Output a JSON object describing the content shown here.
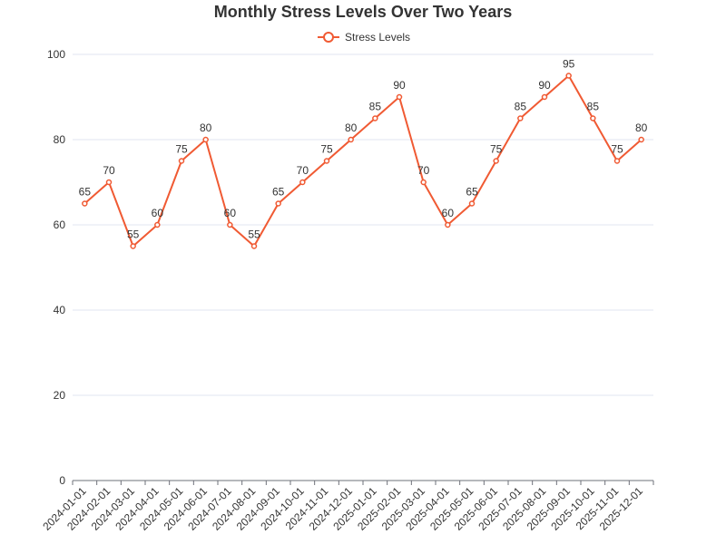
{
  "chart_data": {
    "type": "line",
    "title": "Monthly Stress Levels Over Two Years",
    "x": [
      "2024-01-01",
      "2024-02-01",
      "2024-03-01",
      "2024-04-01",
      "2024-05-01",
      "2024-06-01",
      "2024-07-01",
      "2024-08-01",
      "2024-09-01",
      "2024-10-01",
      "2024-11-01",
      "2024-12-01",
      "2025-01-01",
      "2025-02-01",
      "2025-03-01",
      "2025-04-01",
      "2025-05-01",
      "2025-06-01",
      "2025-07-01",
      "2025-08-01",
      "2025-09-01",
      "2025-10-01",
      "2025-11-01",
      "2025-12-01"
    ],
    "series": [
      {
        "name": "Stress Levels",
        "values": [
          65,
          70,
          55,
          60,
          75,
          80,
          60,
          55,
          65,
          70,
          75,
          80,
          85,
          90,
          70,
          60,
          65,
          75,
          85,
          90,
          95,
          85,
          75,
          80
        ],
        "color": "#f05a33"
      }
    ],
    "ylim": [
      0,
      100
    ],
    "yticks": [
      0,
      20,
      40,
      60,
      80,
      100
    ],
    "grid": true,
    "legend_position": "top-center",
    "show_data_labels": true
  }
}
